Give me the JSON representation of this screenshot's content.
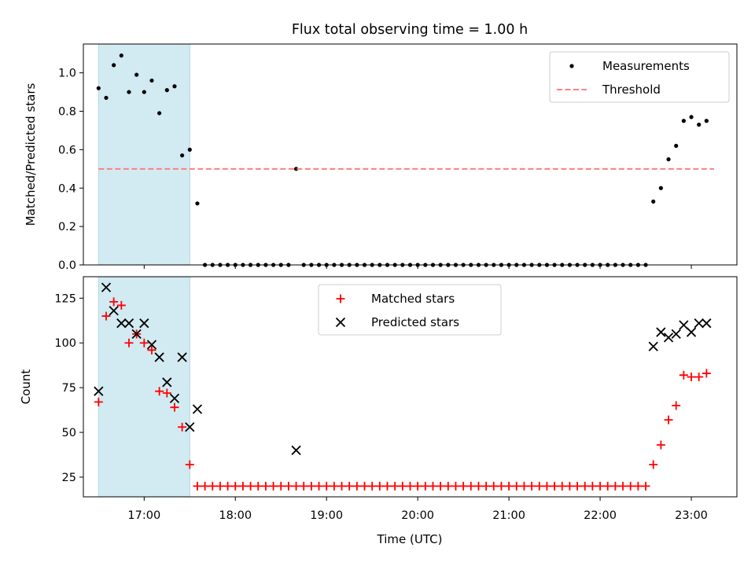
{
  "chart_data": {
    "title": "Flux total observing time = 1.00 h",
    "shared_xlabel": "Time (UTC)",
    "x_unit": "time of day (UTC)",
    "xlim": [
      "16:20",
      "23:30"
    ],
    "xticks": [
      "17:00",
      "18:00",
      "19:00",
      "20:00",
      "21:00",
      "22:00",
      "23:00"
    ],
    "highlight": {
      "from": "16:30",
      "to": "17:30",
      "color": "#add8e6"
    },
    "panels": [
      {
        "type": "scatter",
        "ylabel": "Matched/Predicted stars",
        "ylim": [
          0,
          1.15
        ],
        "yticks": [
          "0.0",
          "0.2",
          "0.4",
          "0.6",
          "0.8",
          "1.0"
        ],
        "legend_position": "top-right",
        "series": [
          {
            "name": "Measurements",
            "marker": "dot",
            "color": "#000000",
            "points": [
              [
                "16:30",
                0.92
              ],
              [
                "16:35",
                0.87
              ],
              [
                "16:40",
                1.04
              ],
              [
                "16:45",
                1.09
              ],
              [
                "16:50",
                0.9
              ],
              [
                "16:55",
                0.99
              ],
              [
                "17:00",
                0.9
              ],
              [
                "17:05",
                0.96
              ],
              [
                "17:10",
                0.79
              ],
              [
                "17:15",
                0.91
              ],
              [
                "17:20",
                0.93
              ],
              [
                "17:25",
                0.57
              ],
              [
                "17:30",
                0.6
              ],
              [
                "17:35",
                0.32
              ],
              [
                "17:40",
                0
              ],
              [
                "17:45",
                0
              ],
              [
                "17:50",
                0
              ],
              [
                "17:55",
                0
              ],
              [
                "18:00",
                0
              ],
              [
                "18:05",
                0
              ],
              [
                "18:10",
                0
              ],
              [
                "18:15",
                0
              ],
              [
                "18:20",
                0
              ],
              [
                "18:25",
                0
              ],
              [
                "18:30",
                0
              ],
              [
                "18:35",
                0
              ],
              [
                "18:40",
                0.5
              ],
              [
                "18:45",
                0
              ],
              [
                "18:50",
                0
              ],
              [
                "18:55",
                0
              ],
              [
                "19:00",
                0
              ],
              [
                "19:05",
                0
              ],
              [
                "19:10",
                0
              ],
              [
                "19:15",
                0
              ],
              [
                "19:20",
                0
              ],
              [
                "19:25",
                0
              ],
              [
                "19:30",
                0
              ],
              [
                "19:35",
                0
              ],
              [
                "19:40",
                0
              ],
              [
                "19:45",
                0
              ],
              [
                "19:50",
                0
              ],
              [
                "19:55",
                0
              ],
              [
                "20:00",
                0
              ],
              [
                "20:05",
                0
              ],
              [
                "20:10",
                0
              ],
              [
                "20:15",
                0
              ],
              [
                "20:20",
                0
              ],
              [
                "20:25",
                0
              ],
              [
                "20:30",
                0
              ],
              [
                "20:35",
                0
              ],
              [
                "20:40",
                0
              ],
              [
                "20:45",
                0
              ],
              [
                "20:50",
                0
              ],
              [
                "20:55",
                0
              ],
              [
                "21:00",
                0
              ],
              [
                "21:05",
                0
              ],
              [
                "21:10",
                0
              ],
              [
                "21:15",
                0
              ],
              [
                "21:20",
                0
              ],
              [
                "21:25",
                0
              ],
              [
                "21:30",
                0
              ],
              [
                "21:35",
                0
              ],
              [
                "21:40",
                0
              ],
              [
                "21:45",
                0
              ],
              [
                "21:50",
                0
              ],
              [
                "21:55",
                0
              ],
              [
                "22:00",
                0
              ],
              [
                "22:05",
                0
              ],
              [
                "22:10",
                0
              ],
              [
                "22:15",
                0
              ],
              [
                "22:20",
                0
              ],
              [
                "22:25",
                0
              ],
              [
                "22:30",
                0
              ],
              [
                "22:35",
                0.33
              ],
              [
                "22:40",
                0.4
              ],
              [
                "22:45",
                0.55
              ],
              [
                "22:50",
                0.62
              ],
              [
                "22:55",
                0.75
              ],
              [
                "23:00",
                0.77
              ],
              [
                "23:05",
                0.73
              ],
              [
                "23:10",
                0.75
              ]
            ]
          },
          {
            "name": "Threshold",
            "marker": "dashed-line",
            "color": "#ff7f7f",
            "points": [
              [
                "16:30",
                0.5
              ],
              [
                "23:15",
                0.5
              ]
            ]
          }
        ]
      },
      {
        "type": "scatter",
        "ylabel": "Count",
        "ylim": [
          14,
          137
        ],
        "yticks": [
          "25",
          "50",
          "75",
          "100",
          "125"
        ],
        "legend_position": "top-center",
        "series": [
          {
            "name": "Matched stars",
            "marker": "plus",
            "color": "#ff0000",
            "points": [
              [
                "16:30",
                67
              ],
              [
                "16:35",
                115
              ],
              [
                "16:40",
                123
              ],
              [
                "16:45",
                121
              ],
              [
                "16:50",
                100
              ],
              [
                "16:55",
                105
              ],
              [
                "17:00",
                100
              ],
              [
                "17:05",
                96
              ],
              [
                "17:10",
                73
              ],
              [
                "17:15",
                72
              ],
              [
                "17:20",
                64
              ],
              [
                "17:25",
                53
              ],
              [
                "17:30",
                32
              ],
              [
                "17:35",
                20
              ],
              [
                "17:40",
                20
              ],
              [
                "17:45",
                20
              ],
              [
                "17:50",
                20
              ],
              [
                "17:55",
                20
              ],
              [
                "18:00",
                20
              ],
              [
                "18:05",
                20
              ],
              [
                "18:10",
                20
              ],
              [
                "18:15",
                20
              ],
              [
                "18:20",
                20
              ],
              [
                "18:25",
                20
              ],
              [
                "18:30",
                20
              ],
              [
                "18:35",
                20
              ],
              [
                "18:40",
                20
              ],
              [
                "18:45",
                20
              ],
              [
                "18:50",
                20
              ],
              [
                "18:55",
                20
              ],
              [
                "19:00",
                20
              ],
              [
                "19:05",
                20
              ],
              [
                "19:10",
                20
              ],
              [
                "19:15",
                20
              ],
              [
                "19:20",
                20
              ],
              [
                "19:25",
                20
              ],
              [
                "19:30",
                20
              ],
              [
                "19:35",
                20
              ],
              [
                "19:40",
                20
              ],
              [
                "19:45",
                20
              ],
              [
                "19:50",
                20
              ],
              [
                "19:55",
                20
              ],
              [
                "20:00",
                20
              ],
              [
                "20:05",
                20
              ],
              [
                "20:10",
                20
              ],
              [
                "20:15",
                20
              ],
              [
                "20:20",
                20
              ],
              [
                "20:25",
                20
              ],
              [
                "20:30",
                20
              ],
              [
                "20:35",
                20
              ],
              [
                "20:40",
                20
              ],
              [
                "20:45",
                20
              ],
              [
                "20:50",
                20
              ],
              [
                "20:55",
                20
              ],
              [
                "21:00",
                20
              ],
              [
                "21:05",
                20
              ],
              [
                "21:10",
                20
              ],
              [
                "21:15",
                20
              ],
              [
                "21:20",
                20
              ],
              [
                "21:25",
                20
              ],
              [
                "21:30",
                20
              ],
              [
                "21:35",
                20
              ],
              [
                "21:40",
                20
              ],
              [
                "21:45",
                20
              ],
              [
                "21:50",
                20
              ],
              [
                "21:55",
                20
              ],
              [
                "22:00",
                20
              ],
              [
                "22:05",
                20
              ],
              [
                "22:10",
                20
              ],
              [
                "22:15",
                20
              ],
              [
                "22:20",
                20
              ],
              [
                "22:25",
                20
              ],
              [
                "22:30",
                20
              ],
              [
                "22:35",
                32
              ],
              [
                "22:40",
                43
              ],
              [
                "22:45",
                57
              ],
              [
                "22:50",
                65
              ],
              [
                "22:55",
                82
              ],
              [
                "23:00",
                81
              ],
              [
                "23:05",
                81
              ],
              [
                "23:10",
                83
              ]
            ]
          },
          {
            "name": "Predicted stars",
            "marker": "x",
            "color": "#000000",
            "points": [
              [
                "16:30",
                73
              ],
              [
                "16:35",
                131
              ],
              [
                "16:40",
                118
              ],
              [
                "16:45",
                111
              ],
              [
                "16:50",
                111
              ],
              [
                "16:55",
                105
              ],
              [
                "17:00",
                111
              ],
              [
                "17:05",
                99
              ],
              [
                "17:10",
                92
              ],
              [
                "17:15",
                78
              ],
              [
                "17:20",
                69
              ],
              [
                "17:25",
                92
              ],
              [
                "17:30",
                53
              ],
              [
                "17:35",
                63
              ],
              [
                "18:40",
                40
              ],
              [
                "22:35",
                98
              ],
              [
                "22:40",
                106
              ],
              [
                "22:45",
                103
              ],
              [
                "22:50",
                105
              ],
              [
                "22:55",
                110
              ],
              [
                "23:00",
                106
              ],
              [
                "23:05",
                111
              ],
              [
                "23:10",
                111
              ]
            ]
          }
        ]
      }
    ]
  }
}
